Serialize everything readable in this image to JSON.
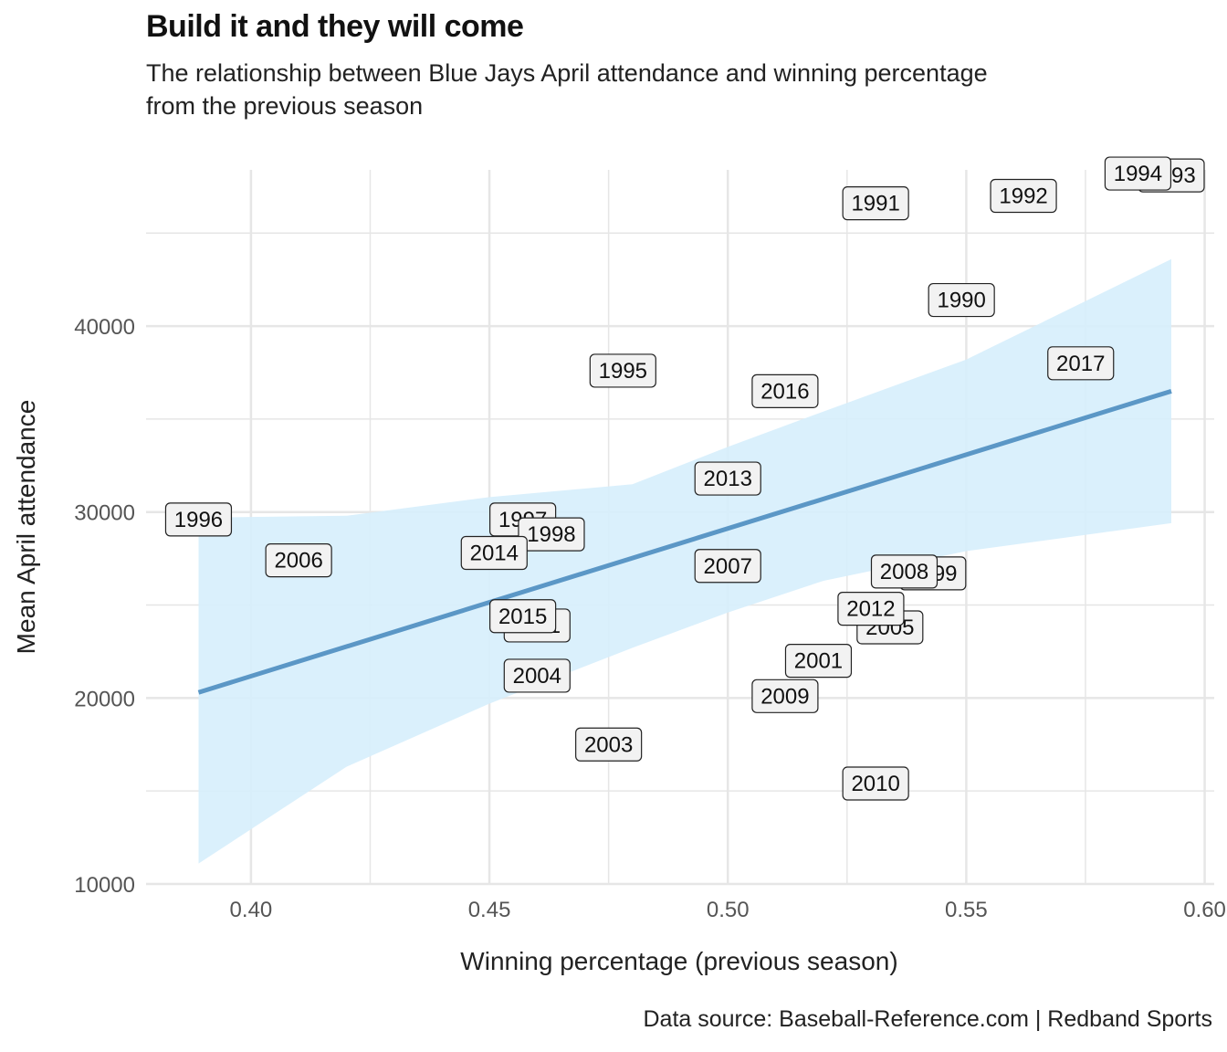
{
  "title": "Build it and they will come",
  "subtitle_line1": "The relationship between Blue Jays April attendance and winning percentage",
  "subtitle_line2": "from the previous season",
  "caption": "Data source: Baseball-Reference.com  |  Redband Sports",
  "colors": {
    "fit_line": "#5b97c6",
    "confidence_band": "#d6eefc",
    "label_fill": "#f2f2f2",
    "label_border": "#222222",
    "grid": "#e6e6e6"
  },
  "chart_data": {
    "type": "scatter",
    "title": "Build it and they will come",
    "subtitle": "The relationship between Blue Jays April attendance and winning percentage from the previous season",
    "xlabel": "Winning percentage (previous season)",
    "ylabel": "Mean April attendance",
    "xlim": [
      0.378,
      0.602
    ],
    "ylim": [
      10000,
      48400
    ],
    "x_ticks": [
      0.4,
      0.45,
      0.5,
      0.55,
      0.6
    ],
    "x_tick_labels": [
      "0.40",
      "0.45",
      "0.50",
      "0.55",
      "0.60"
    ],
    "y_ticks": [
      10000,
      20000,
      30000,
      40000
    ],
    "y_tick_labels": [
      "10000",
      "20000",
      "30000",
      "40000"
    ],
    "grid": true,
    "legend": "none",
    "points": [
      {
        "label": "1990",
        "x": 0.549,
        "y": 41400
      },
      {
        "label": "1991",
        "x": 0.531,
        "y": 46600
      },
      {
        "label": "1992",
        "x": 0.562,
        "y": 47000
      },
      {
        "label": "1993",
        "x": 0.593,
        "y": 48100
      },
      {
        "label": "1994",
        "x": 0.586,
        "y": 48200
      },
      {
        "label": "1995",
        "x": 0.478,
        "y": 37600
      },
      {
        "label": "1996",
        "x": 0.389,
        "y": 29600
      },
      {
        "label": "1997",
        "x": 0.457,
        "y": 29600
      },
      {
        "label": "1998",
        "x": 0.463,
        "y": 28800
      },
      {
        "label": "1999",
        "x": 0.543,
        "y": 26700
      },
      {
        "label": "2001",
        "x": 0.519,
        "y": 22000
      },
      {
        "label": "2003",
        "x": 0.475,
        "y": 17500
      },
      {
        "label": "2004",
        "x": 0.46,
        "y": 21200
      },
      {
        "label": "2005",
        "x": 0.534,
        "y": 23800
      },
      {
        "label": "2006",
        "x": 0.41,
        "y": 27400
      },
      {
        "label": "2007",
        "x": 0.5,
        "y": 27100
      },
      {
        "label": "2008",
        "x": 0.537,
        "y": 26800
      },
      {
        "label": "2009",
        "x": 0.512,
        "y": 20100
      },
      {
        "label": "2010",
        "x": 0.531,
        "y": 15400
      },
      {
        "label": "2011",
        "x": 0.46,
        "y": 23900
      },
      {
        "label": "2012",
        "x": 0.53,
        "y": 24800
      },
      {
        "label": "2013",
        "x": 0.5,
        "y": 31800
      },
      {
        "label": "2014",
        "x": 0.451,
        "y": 27800
      },
      {
        "label": "2015",
        "x": 0.457,
        "y": 24400
      },
      {
        "label": "2016",
        "x": 0.512,
        "y": 36500
      },
      {
        "label": "2017",
        "x": 0.574,
        "y": 38000
      }
    ],
    "fit_line": {
      "x": [
        0.389,
        0.593
      ],
      "y": [
        20300,
        36500
      ]
    },
    "confidence_band": {
      "x": [
        0.389,
        0.42,
        0.45,
        0.48,
        0.5,
        0.52,
        0.55,
        0.593
      ],
      "lower": [
        11100,
        16300,
        19700,
        22700,
        24600,
        26300,
        27900,
        29400
      ],
      "upper": [
        29700,
        29800,
        30800,
        31500,
        33500,
        35400,
        38200,
        43600
      ]
    }
  }
}
